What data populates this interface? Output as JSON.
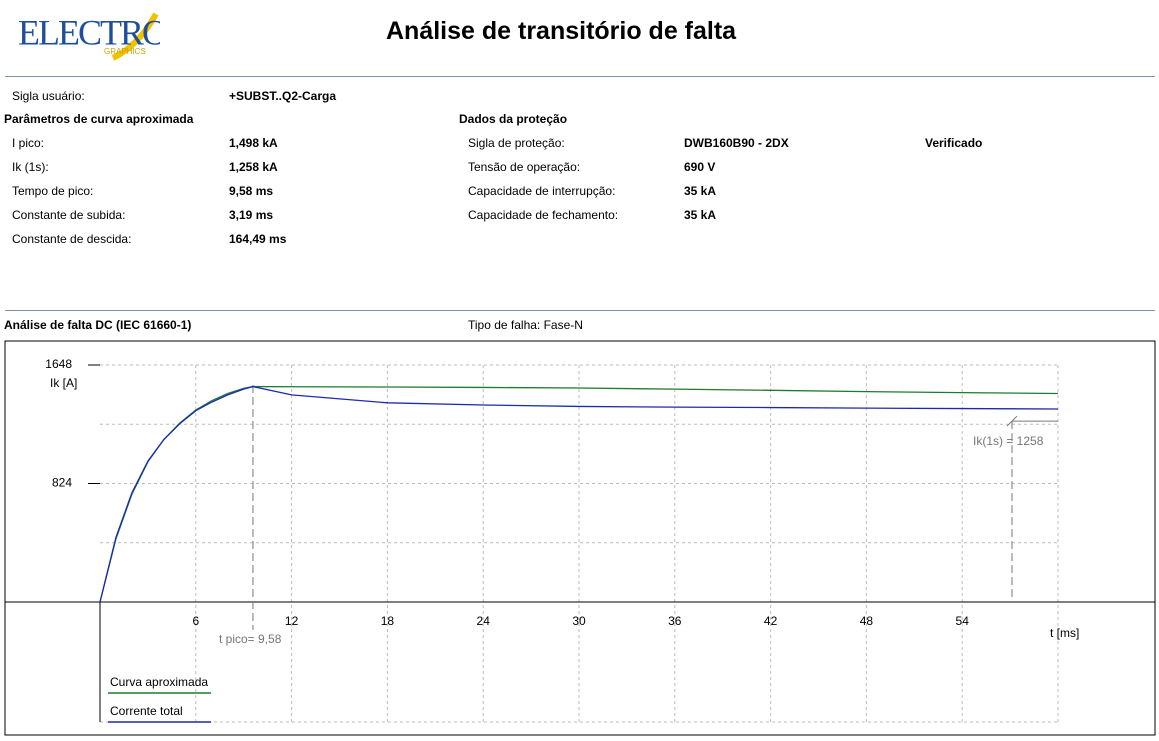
{
  "header": {
    "logo": "ELECTRO",
    "logo_sub": "GRAPHICS",
    "title": "Análise de transitório de falta"
  },
  "user": {
    "label": "Sigla usuário:",
    "value": "+SUBST..Q2-Carga"
  },
  "parameters": {
    "title": "Parâmetros de curva aproximada",
    "rows": [
      [
        "I pico:",
        "1,498 kA"
      ],
      [
        "Ik (1s):",
        "1,258 kA"
      ],
      [
        "Tempo de pico:",
        "9,58 ms"
      ],
      [
        "Constante de subida:",
        "3,19 ms"
      ],
      [
        "Constante de descida:",
        "164,49 ms"
      ]
    ]
  },
  "protection": {
    "title": "Dados da proteção",
    "status": "Verificado",
    "rows": [
      [
        "Sigla de proteção:",
        "DWB160B90 - 2DX"
      ],
      [
        "Tensão de operação:",
        "690 V"
      ],
      [
        "Capacidade de interrupção:",
        "35 kA"
      ],
      [
        "Capacidade de fechamento:",
        "35 kA"
      ]
    ]
  },
  "analysis": {
    "title": "Análise de falta DC (IEC 61660-1)",
    "fault_type": "Tipo de falha: Fase-N"
  },
  "chart_data": {
    "type": "line",
    "x_label": "t [ms]",
    "y_label": "Ik [A]",
    "x": [
      0,
      1,
      2,
      3,
      4,
      5,
      6,
      7,
      8,
      9,
      9.58,
      12,
      18,
      24,
      30,
      36,
      42,
      48,
      54,
      60
    ],
    "series": [
      {
        "name": "Curva aproximada",
        "color": "#1e7a2e",
        "values": [
          0,
          440,
          750,
          975,
          1130,
          1245,
          1335,
          1400,
          1450,
          1485,
          1498,
          1497,
          1495,
          1492,
          1488,
          1480,
          1472,
          1463,
          1456,
          1450
        ]
      },
      {
        "name": "Corrente total",
        "color": "#1c2ab0",
        "values": [
          0,
          450,
          760,
          980,
          1130,
          1240,
          1330,
          1390,
          1440,
          1480,
          1498,
          1440,
          1385,
          1370,
          1360,
          1355,
          1352,
          1348,
          1345,
          1342
        ]
      }
    ],
    "xlim": [
      0,
      60
    ],
    "xticks": [
      6,
      12,
      18,
      24,
      30,
      36,
      42,
      48,
      54
    ],
    "ylim": [
      0,
      1648
    ],
    "yticks": [
      824,
      1648
    ],
    "ygrid": [
      412,
      1236
    ],
    "grid": true,
    "annotations": [
      {
        "text": "t pico= 9,58",
        "x": 9.58
      },
      {
        "text": "Ik(1s) = 1258",
        "y": 1258
      }
    ]
  }
}
